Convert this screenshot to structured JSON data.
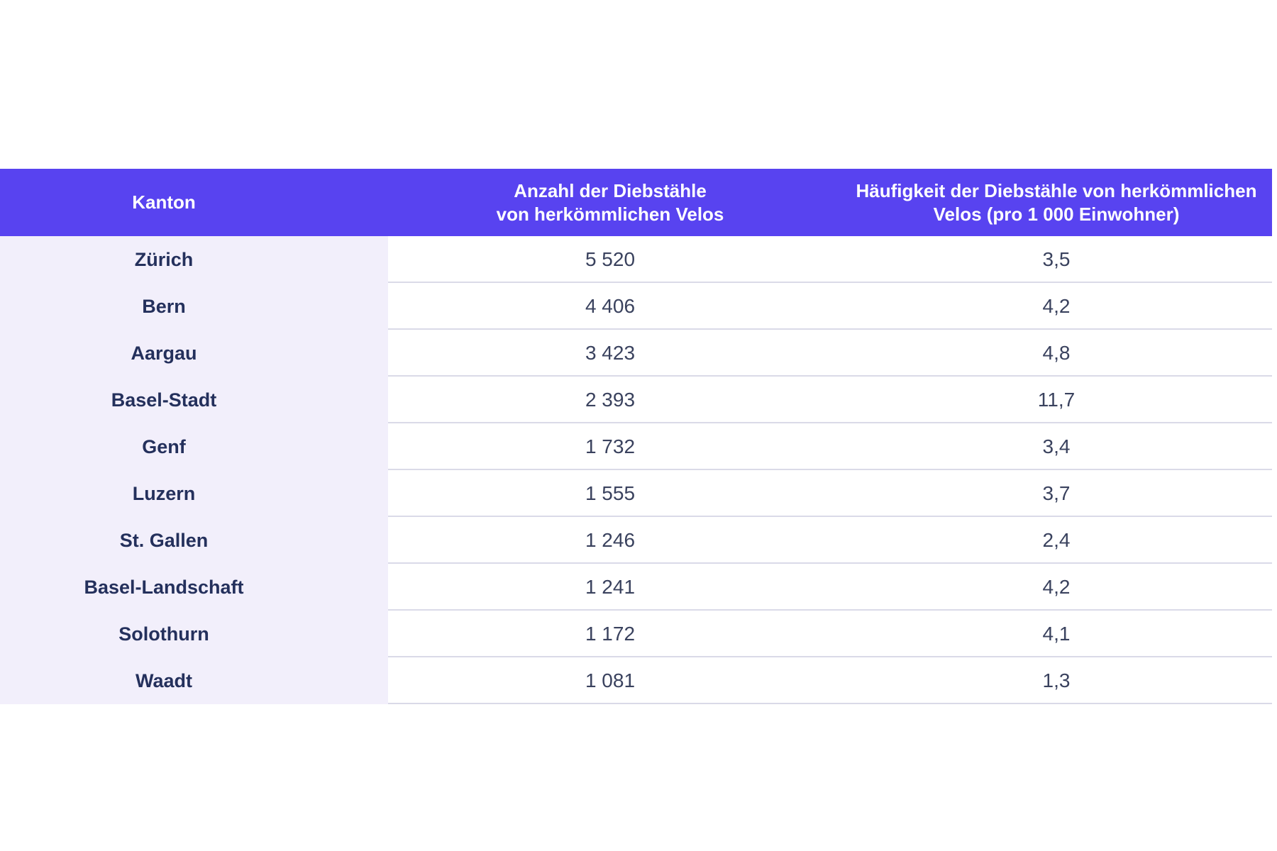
{
  "page": {
    "background_color": "#ffffff"
  },
  "table": {
    "header": {
      "kanton": "Kanton",
      "anzahl_line1": "Anzahl der Diebstähle",
      "anzahl_line2": "von herkömmlichen Velos",
      "haeufigkeit_line1": "Häufigkeit der Diebstähle von herkömmlichen",
      "haeufigkeit_line2": "Velos (pro 1 000 Einwohner)"
    },
    "rows": [
      {
        "kanton": "Zürich",
        "anzahl": "5 520",
        "haeufigkeit": "3,5"
      },
      {
        "kanton": "Bern",
        "anzahl": "4 406",
        "haeufigkeit": "4,2"
      },
      {
        "kanton": "Aargau",
        "anzahl": "3 423",
        "haeufigkeit": "4,8"
      },
      {
        "kanton": "Basel-Stadt",
        "anzahl": "2 393",
        "haeufigkeit": "11,7"
      },
      {
        "kanton": "Genf",
        "anzahl": "1 732",
        "haeufigkeit": "3,4"
      },
      {
        "kanton": "Luzern",
        "anzahl": "1 555",
        "haeufigkeit": "3,7"
      },
      {
        "kanton": "St. Gallen",
        "anzahl": "1 246",
        "haeufigkeit": "2,4"
      },
      {
        "kanton": "Basel-Landschaft",
        "anzahl": "1 241",
        "haeufigkeit": "4,2"
      },
      {
        "kanton": "Solothurn",
        "anzahl": "1 172",
        "haeufigkeit": "4,1"
      },
      {
        "kanton": "Waadt",
        "anzahl": "1 081",
        "haeufigkeit": "1,3"
      }
    ],
    "colors": {
      "header_bg": "#5843f0",
      "header_text": "#ffffff",
      "first_col_bg": "#f2effb",
      "divider": "#dadae8",
      "kanton_text": "#24305c",
      "value_text": "#3a425e"
    }
  },
  "chart_data": {
    "type": "table",
    "title": "",
    "columns": [
      "Kanton",
      "Anzahl der Diebstähle von herkömmlichen Velos",
      "Häufigkeit der Diebstähle von herkömmlichen Velos (pro 1 000 Einwohner)"
    ],
    "categories": [
      "Zürich",
      "Bern",
      "Aargau",
      "Basel-Stadt",
      "Genf",
      "Luzern",
      "St. Gallen",
      "Basel-Landschaft",
      "Solothurn",
      "Waadt"
    ],
    "series": [
      {
        "name": "Anzahl der Diebstähle von herkömmlichen Velos",
        "values": [
          5520,
          4406,
          3423,
          2393,
          1732,
          1555,
          1246,
          1241,
          1172,
          1081
        ]
      },
      {
        "name": "Häufigkeit der Diebstähle von herkömmlichen Velos (pro 1 000 Einwohner)",
        "values": [
          3.5,
          4.2,
          4.8,
          11.7,
          3.4,
          3.7,
          2.4,
          4.2,
          4.1,
          1.3
        ]
      }
    ],
    "layout_hints": {
      "header_background": "#5843f0",
      "first_column_background": "#f2effb",
      "decimal_separator": ",",
      "thousands_separator": " "
    }
  }
}
